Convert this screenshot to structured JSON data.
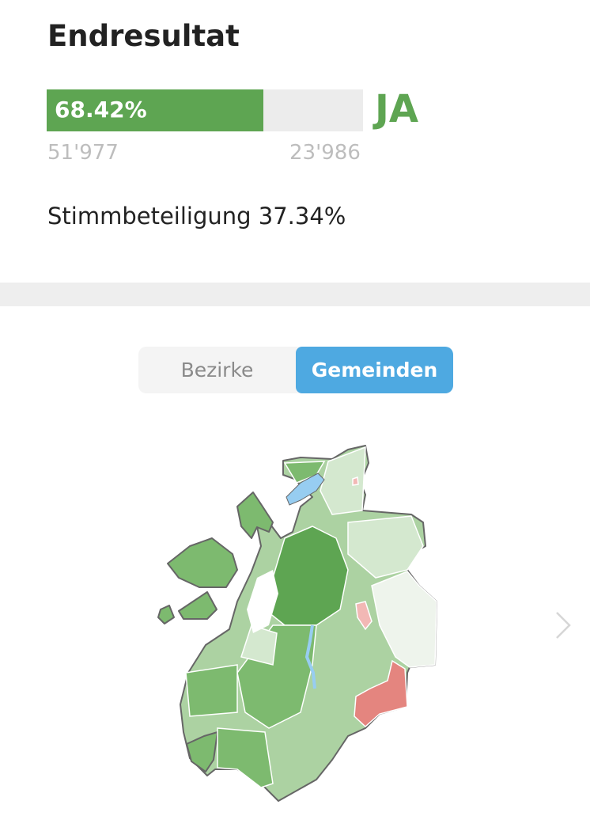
{
  "header": {
    "title": "Endresultat"
  },
  "result": {
    "yes_percent_label": "68.42%",
    "yes_percent": 68.42,
    "verdict": "JA",
    "yes_votes": "51'977",
    "no_votes": "23'986",
    "turnout": "Stimmbeteiligung 37.34%"
  },
  "toggle": {
    "options": [
      "Bezirke",
      "Gemeinden"
    ],
    "selected": "Gemeinden"
  },
  "map": {
    "colors": {
      "yes_strong": "#5ea552",
      "yes_medium": "#7dba6f",
      "yes_light": "#acd2a2",
      "yes_faint": "#d4e8cf",
      "neutral": "#eef4ec",
      "no": "#e4857f",
      "no_light": "#f2b8b5",
      "lake": "#97cdf1",
      "border": "#666666"
    }
  },
  "icons": {
    "next": "chevron-right-icon"
  }
}
